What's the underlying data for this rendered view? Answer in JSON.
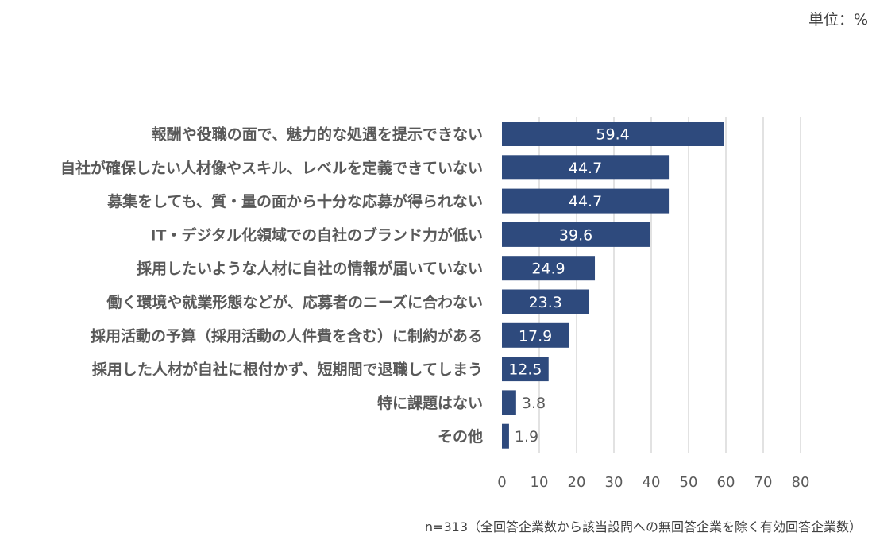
{
  "unit_label": "単位：%",
  "footnote": "n=313（全回答企業数から該当設問への無回答企業を除く有効回答企業数）",
  "colors": {
    "bar": "#2E4A7D",
    "grid": "#D9D9D9",
    "label_inside": "#FFFFFF",
    "label_outside": "#595959"
  },
  "chart_data": {
    "type": "bar",
    "orientation": "horizontal",
    "categories": [
      "報酬や役職の面で、魅力的な処遇を提示できない",
      "自社が確保したい人材像やスキル、レベルを定義できていない",
      "募集をしても、質・量の面から十分な応募が得られない",
      "IT・デジタル化領域での自社のブランド力が低い",
      "採用したいような人材に自社の情報が届いていない",
      "働く環境や就業形態などが、応募者のニーズに合わない",
      "採用活動の予算（採用活動の人件費を含む）に制約がある",
      "採用した人材が自社に根付かず、短期間で退職してしまう",
      "特に課題はない",
      "その他"
    ],
    "values": [
      59.4,
      44.7,
      44.7,
      39.6,
      24.9,
      23.3,
      17.9,
      12.5,
      3.8,
      1.9
    ],
    "value_labels": [
      "59.4",
      "44.7",
      "44.7",
      "39.6",
      "24.9",
      "23.3",
      "17.9",
      "12.5",
      "3.8",
      "1.9"
    ],
    "xlim": [
      0,
      80
    ],
    "xticks": [
      "0",
      "10",
      "20",
      "30",
      "40",
      "50",
      "60",
      "70",
      "80"
    ],
    "grid": true,
    "legend": "none"
  }
}
